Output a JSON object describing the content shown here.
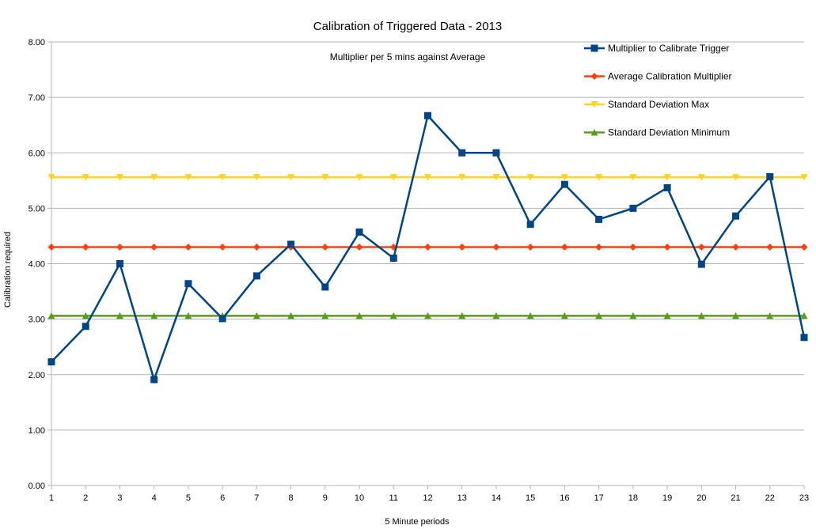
{
  "chart_data": {
    "type": "line",
    "title": "Calibration of Triggered Data - 2013",
    "subtitle": "Multiplier per 5 mins against Average",
    "xlabel": "5 Minute periods",
    "ylabel": "Calibration required",
    "ylim": [
      0,
      8
    ],
    "yticks": [
      "0.00",
      "1.00",
      "2.00",
      "3.00",
      "4.00",
      "5.00",
      "6.00",
      "7.00",
      "8.00"
    ],
    "categories": [
      "1",
      "2",
      "3",
      "4",
      "5",
      "6",
      "7",
      "8",
      "9",
      "10",
      "11",
      "12",
      "13",
      "14",
      "15",
      "16",
      "17",
      "18",
      "19",
      "20",
      "21",
      "22",
      "23"
    ],
    "grid": true,
    "legend_position": "top-right",
    "series": [
      {
        "name": "Multiplier to Calibrate Trigger",
        "color": "#004586",
        "marker": "square",
        "values": [
          2.23,
          2.87,
          4.0,
          1.91,
          3.64,
          3.01,
          3.78,
          4.35,
          3.58,
          4.57,
          4.1,
          6.67,
          6.0,
          6.0,
          4.71,
          5.43,
          4.8,
          5.0,
          5.37,
          3.99,
          4.86,
          5.57,
          2.67
        ]
      },
      {
        "name": "Average Calibration Multiplier",
        "color": "#ff420e",
        "marker": "diamond",
        "values": [
          4.3,
          4.3,
          4.3,
          4.3,
          4.3,
          4.3,
          4.3,
          4.3,
          4.3,
          4.3,
          4.3,
          4.3,
          4.3,
          4.3,
          4.3,
          4.3,
          4.3,
          4.3,
          4.3,
          4.3,
          4.3,
          4.3,
          4.3
        ]
      },
      {
        "name": "Standard Deviation Max",
        "color": "#ffd320",
        "marker": "triangle-down",
        "values": [
          5.56,
          5.56,
          5.56,
          5.56,
          5.56,
          5.56,
          5.56,
          5.56,
          5.56,
          5.56,
          5.56,
          5.56,
          5.56,
          5.56,
          5.56,
          5.56,
          5.56,
          5.56,
          5.56,
          5.56,
          5.56,
          5.56,
          5.56
        ]
      },
      {
        "name": "Standard Deviation Minimum",
        "color": "#579d1c",
        "marker": "triangle-up",
        "values": [
          3.06,
          3.06,
          3.06,
          3.06,
          3.06,
          3.06,
          3.06,
          3.06,
          3.06,
          3.06,
          3.06,
          3.06,
          3.06,
          3.06,
          3.06,
          3.06,
          3.06,
          3.06,
          3.06,
          3.06,
          3.06,
          3.06,
          3.06
        ]
      }
    ]
  }
}
